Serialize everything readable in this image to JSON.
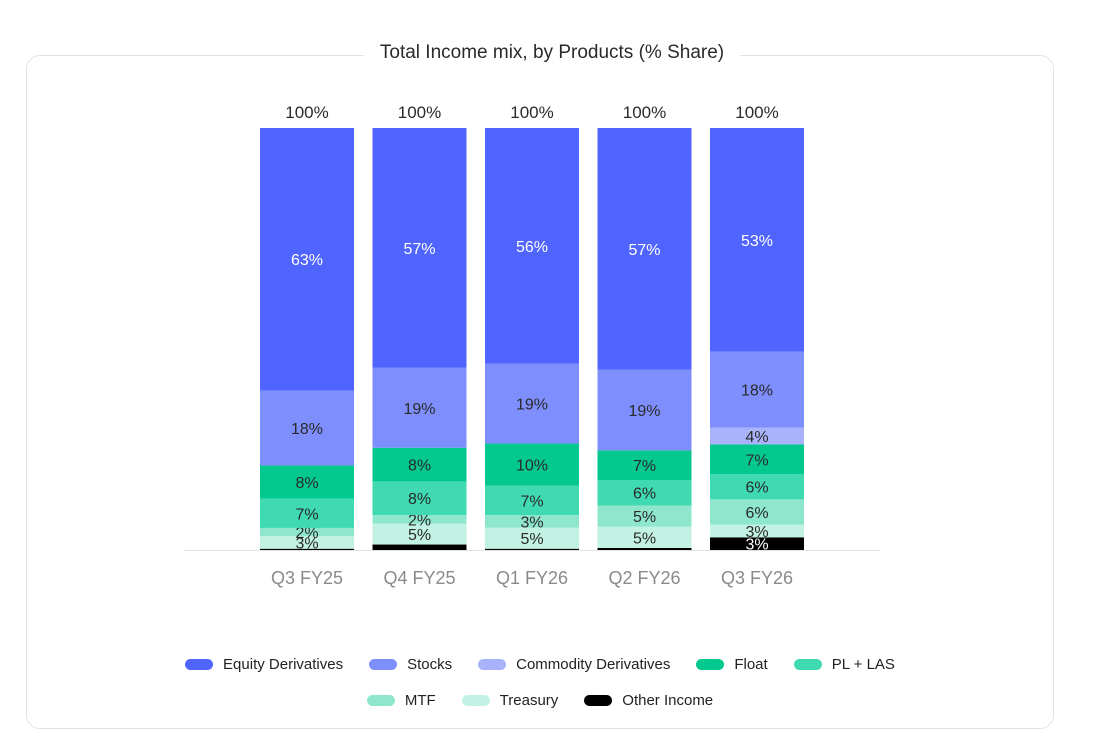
{
  "chart_data": {
    "type": "bar",
    "stacked": true,
    "title": "Total Income mix, by Products (% Share)",
    "categories": [
      "Q3 FY25",
      "Q4 FY25",
      "Q1 FY26",
      "Q2 FY26",
      "Q3 FY26"
    ],
    "totals": [
      "100%",
      "100%",
      "100%",
      "100%",
      "100%"
    ],
    "ylim": [
      0,
      100
    ],
    "series": [
      {
        "name": "Other Income",
        "color": "#000000",
        "values": [
          0.3,
          1.3,
          0.3,
          0.5,
          3
        ],
        "labels": [
          "",
          "",
          "",
          "",
          "3%"
        ],
        "label_color": "#ffffff"
      },
      {
        "name": "Treasury",
        "color": "#c2f2e3",
        "values": [
          3,
          5,
          5,
          5,
          3
        ],
        "labels": [
          "3%",
          "5%",
          "5%",
          "5%",
          "3%"
        ],
        "label_color": "#2a2a2a"
      },
      {
        "name": "MTF",
        "color": "#8ee7cc",
        "values": [
          2,
          2,
          3,
          5,
          6
        ],
        "labels": [
          "2%",
          "2%",
          "3%",
          "5%",
          "6%"
        ],
        "label_color": "#2a2a2a"
      },
      {
        "name": "PL + LAS",
        "color": "#3fdab2",
        "values": [
          7,
          8,
          7,
          6,
          6
        ],
        "labels": [
          "7%",
          "8%",
          "7%",
          "6%",
          "6%"
        ],
        "label_color": "#2a2a2a"
      },
      {
        "name": "Float",
        "color": "#04c98f",
        "values": [
          8,
          8,
          10,
          7,
          7
        ],
        "labels": [
          "8%",
          "8%",
          "10%",
          "7%",
          "7%"
        ],
        "label_color": "#2a2a2a"
      },
      {
        "name": "Commodity Derivatives",
        "color": "#a9b3fb",
        "values": [
          0,
          0,
          0,
          0,
          4
        ],
        "labels": [
          "",
          "",
          "",
          "",
          "4%"
        ],
        "label_color": "#2a2a2a"
      },
      {
        "name": "Stocks",
        "color": "#7f8efd",
        "values": [
          18,
          19,
          19,
          19,
          18
        ],
        "labels": [
          "18%",
          "19%",
          "19%",
          "19%",
          "18%"
        ],
        "label_color": "#2a2a2a"
      },
      {
        "name": "Equity Derivatives",
        "color": "#5064ff",
        "values": [
          63,
          57,
          56,
          57,
          53
        ],
        "labels": [
          "63%",
          "57%",
          "56%",
          "57%",
          "53%"
        ],
        "label_color": "#ffffff"
      }
    ],
    "legend": [
      [
        "Equity Derivatives",
        "Stocks",
        "Commodity Derivatives",
        "Float",
        "PL + LAS"
      ],
      [
        "MTF",
        "Treasury",
        "Other Income"
      ]
    ],
    "legend_placement": "bottom",
    "grid": false
  }
}
